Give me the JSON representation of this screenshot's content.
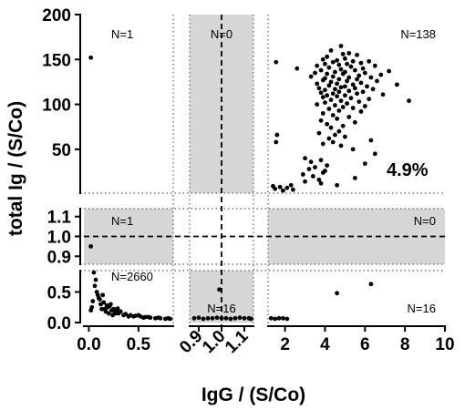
{
  "chart_data": {
    "type": "scatter",
    "xlabel": "IgG / (S/Co)",
    "ylabel": "total Ig / (S/Co)",
    "panels": {
      "x": [
        {
          "range": [
            -0.05,
            0.85
          ],
          "ticks": [
            {
              "v": 0,
              "label": "0.0"
            },
            {
              "v": 0.5,
              "label": "0.5"
            }
          ]
        },
        {
          "range": [
            0.86,
            1.14
          ],
          "ticks": [
            {
              "v": 0.9,
              "label": "0.9"
            },
            {
              "v": 1.0,
              "label": "1.0"
            },
            {
              "v": 1.1,
              "label": "1.1"
            }
          ],
          "rotated": true
        },
        {
          "range": [
            1.15,
            10
          ],
          "ticks": [
            {
              "v": 2,
              "label": "2"
            },
            {
              "v": 4,
              "label": "4"
            },
            {
              "v": 6,
              "label": "6"
            },
            {
              "v": 8,
              "label": "8"
            },
            {
              "v": 10,
              "label": "10"
            }
          ]
        }
      ],
      "y": [
        {
          "range": [
            1.15,
            200
          ],
          "ticks": [
            {
              "v": 50,
              "label": "50"
            },
            {
              "v": 100,
              "label": "100"
            },
            {
              "v": 150,
              "label": "150"
            },
            {
              "v": 200,
              "label": "200"
            }
          ]
        },
        {
          "range": [
            0.86,
            1.14
          ],
          "ticks": [
            {
              "v": 0.9,
              "label": "0.9"
            },
            {
              "v": 1.0,
              "label": "1.0"
            },
            {
              "v": 1.1,
              "label": "1.1"
            }
          ]
        },
        {
          "range": [
            0,
            0.85
          ],
          "ticks": [
            {
              "v": 0,
              "label": "0.0"
            },
            {
              "v": 0.5,
              "label": "0.5"
            }
          ]
        }
      ]
    },
    "cutoff": 1.0,
    "gray_zone": [
      0.9,
      1.1
    ],
    "counts": [
      {
        "row": 0,
        "col": 0,
        "label": "N=1",
        "anchor": "left"
      },
      {
        "row": 0,
        "col": 1,
        "label": "N=0",
        "anchor": "middle"
      },
      {
        "row": 0,
        "col": 2,
        "label": "N=138",
        "anchor": "right"
      },
      {
        "row": 1,
        "col": 0,
        "label": "N=1",
        "anchor": "left"
      },
      {
        "row": 1,
        "col": 2,
        "label": "N=0",
        "anchor": "right"
      },
      {
        "row": 2,
        "col": 0,
        "label": "N=2660",
        "anchor": "left"
      },
      {
        "row": 2,
        "col": 1,
        "label": "N=16",
        "anchor": "middle"
      },
      {
        "row": 2,
        "col": 2,
        "label": "N=16",
        "anchor": "right"
      }
    ],
    "percent_label": "4.9%",
    "series": [
      {
        "points": [
          [
            0.02,
            152
          ],
          [
            0.02,
            0.95
          ],
          [
            4.8,
            165
          ],
          [
            4.3,
            160
          ],
          [
            5.2,
            157
          ],
          [
            4.9,
            156
          ],
          [
            5.6,
            155
          ],
          [
            4.1,
            153
          ],
          [
            5.0,
            151
          ],
          [
            3.9,
            150
          ],
          [
            4.6,
            149
          ],
          [
            5.4,
            148
          ],
          [
            6.2,
            148
          ],
          [
            4.4,
            147
          ],
          [
            1.55,
            147
          ],
          [
            5.8,
            146
          ],
          [
            4.0,
            145
          ],
          [
            5.1,
            145
          ],
          [
            4.7,
            144
          ],
          [
            3.6,
            143
          ],
          [
            6.5,
            143
          ],
          [
            5.3,
            142
          ],
          [
            4.2,
            141
          ],
          [
            2.6,
            140
          ],
          [
            5.9,
            140
          ],
          [
            4.8,
            139
          ],
          [
            3.8,
            138
          ],
          [
            5.5,
            138
          ],
          [
            7.2,
            137
          ],
          [
            4.5,
            136
          ],
          [
            5.0,
            136
          ],
          [
            3.5,
            135
          ],
          [
            6.0,
            135
          ],
          [
            4.1,
            134
          ],
          [
            4.9,
            134
          ],
          [
            6.8,
            133
          ],
          [
            5.7,
            132
          ],
          [
            3.3,
            131
          ],
          [
            4.4,
            131
          ],
          [
            5.2,
            130
          ],
          [
            6.3,
            130
          ],
          [
            4.0,
            129
          ],
          [
            4.7,
            128
          ],
          [
            5.6,
            128
          ],
          [
            3.9,
            127
          ],
          [
            5.1,
            126
          ],
          [
            6.6,
            126
          ],
          [
            4.3,
            125
          ],
          [
            5.8,
            124
          ],
          [
            3.6,
            123
          ],
          [
            4.6,
            123
          ],
          [
            5.4,
            122
          ],
          [
            7.6,
            122
          ],
          [
            4.2,
            121
          ],
          [
            5.0,
            120
          ],
          [
            6.1,
            120
          ],
          [
            4.8,
            119
          ],
          [
            3.7,
            118
          ],
          [
            5.5,
            118
          ],
          [
            4.5,
            117
          ],
          [
            6.4,
            117
          ],
          [
            4.0,
            116
          ],
          [
            5.2,
            115
          ],
          [
            4.7,
            114
          ],
          [
            5.9,
            114
          ],
          [
            3.8,
            113
          ],
          [
            4.4,
            112
          ],
          [
            5.6,
            112
          ],
          [
            6.9,
            111
          ],
          [
            4.1,
            110
          ],
          [
            5.0,
            110
          ],
          [
            4.6,
            109
          ],
          [
            3.9,
            108
          ],
          [
            5.3,
            107
          ],
          [
            6.2,
            106
          ],
          [
            4.3,
            105
          ],
          [
            4.8,
            104
          ],
          [
            8.2,
            104
          ],
          [
            5.7,
            103
          ],
          [
            4.0,
            102
          ],
          [
            5.1,
            101
          ],
          [
            3.6,
            100
          ],
          [
            4.5,
            99
          ],
          [
            6.0,
            98
          ],
          [
            4.9,
            97
          ],
          [
            5.4,
            96
          ],
          [
            4.2,
            95
          ],
          [
            4.7,
            93
          ],
          [
            5.8,
            92
          ],
          [
            3.9,
            90
          ],
          [
            4.4,
            88
          ],
          [
            5.2,
            86
          ],
          [
            4.6,
            84
          ],
          [
            3.8,
            82
          ],
          [
            5.5,
            80
          ],
          [
            4.1,
            78
          ],
          [
            4.9,
            76
          ],
          [
            4.3,
            74
          ],
          [
            4.7,
            70
          ],
          [
            3.7,
            68
          ],
          [
            4.5,
            66
          ],
          [
            5.0,
            64
          ],
          [
            4.2,
            62
          ],
          [
            6.3,
            60
          ],
          [
            4.4,
            58
          ],
          [
            3.9,
            56
          ],
          [
            4.8,
            54
          ],
          [
            1.6,
            66
          ],
          [
            1.55,
            58
          ],
          [
            5.4,
            50
          ],
          [
            6.5,
            45
          ],
          [
            3.0,
            40
          ],
          [
            3.8,
            38
          ],
          [
            3.3,
            36
          ],
          [
            6.0,
            34
          ],
          [
            4.1,
            32
          ],
          [
            3.5,
            30
          ],
          [
            3.2,
            28
          ],
          [
            4.0,
            26
          ],
          [
            3.9,
            24
          ],
          [
            2.9,
            22
          ],
          [
            3.4,
            20
          ],
          [
            5.5,
            18
          ],
          [
            3.7,
            16
          ],
          [
            3.0,
            14
          ],
          [
            3.8,
            12
          ],
          [
            2.3,
            10
          ],
          [
            4.6,
            10
          ],
          [
            1.4,
            9
          ],
          [
            1.75,
            8
          ],
          [
            2.1,
            7
          ],
          [
            1.5,
            6
          ],
          [
            2.4,
            5
          ],
          [
            1.9,
            4
          ],
          [
            0.02,
            0.2
          ],
          [
            0.04,
            0.35
          ],
          [
            0.06,
            0.6
          ],
          [
            0.08,
            0.5
          ],
          [
            0.1,
            0.4
          ],
          [
            0.12,
            0.3
          ],
          [
            0.14,
            0.45
          ],
          [
            0.16,
            0.22
          ],
          [
            0.18,
            0.28
          ],
          [
            0.2,
            0.15
          ],
          [
            0.22,
            0.3
          ],
          [
            0.24,
            0.12
          ],
          [
            0.26,
            0.18
          ],
          [
            0.28,
            0.2
          ],
          [
            0.3,
            0.15
          ],
          [
            0.35,
            0.12
          ],
          [
            0.4,
            0.1
          ],
          [
            0.45,
            0.1
          ],
          [
            0.5,
            0.12
          ],
          [
            0.55,
            0.08
          ],
          [
            0.6,
            0.09
          ],
          [
            0.7,
            0.08
          ],
          [
            0.8,
            0.07
          ],
          [
            0.05,
            0.82
          ],
          [
            0.03,
            0.25
          ],
          [
            0.07,
            0.7
          ],
          [
            0.09,
            0.45
          ],
          [
            0.11,
            0.38
          ],
          [
            0.13,
            0.22
          ],
          [
            0.15,
            0.33
          ],
          [
            0.17,
            0.18
          ],
          [
            0.19,
            0.25
          ],
          [
            0.21,
            0.27
          ],
          [
            0.23,
            0.2
          ],
          [
            0.25,
            0.22
          ],
          [
            0.27,
            0.15
          ],
          [
            0.29,
            0.23
          ],
          [
            0.32,
            0.18
          ],
          [
            0.37,
            0.14
          ],
          [
            0.42,
            0.12
          ],
          [
            0.47,
            0.11
          ],
          [
            0.52,
            0.1
          ],
          [
            0.57,
            0.09
          ],
          [
            0.62,
            0.08
          ],
          [
            0.67,
            0.07
          ],
          [
            0.72,
            0.07
          ],
          [
            0.77,
            0.06
          ],
          [
            0.82,
            0.06
          ],
          [
            0.88,
            0.07
          ],
          [
            0.9,
            0.08
          ],
          [
            0.92,
            0.06
          ],
          [
            0.94,
            0.07
          ],
          [
            0.96,
            0.07
          ],
          [
            0.98,
            0.08
          ],
          [
            0.99,
            0.54
          ],
          [
            1.0,
            0.07
          ],
          [
            1.02,
            0.07
          ],
          [
            1.04,
            0.06
          ],
          [
            1.06,
            0.07
          ],
          [
            1.08,
            0.08
          ],
          [
            1.1,
            0.07
          ],
          [
            1.12,
            0.07
          ],
          [
            1.13,
            0.06
          ],
          [
            4.6,
            0.48
          ],
          [
            6.3,
            0.63
          ],
          [
            1.3,
            0.07
          ],
          [
            1.5,
            0.06
          ],
          [
            1.7,
            0.07
          ],
          [
            1.9,
            0.07
          ],
          [
            2.1,
            0.06
          ]
        ]
      }
    ]
  }
}
